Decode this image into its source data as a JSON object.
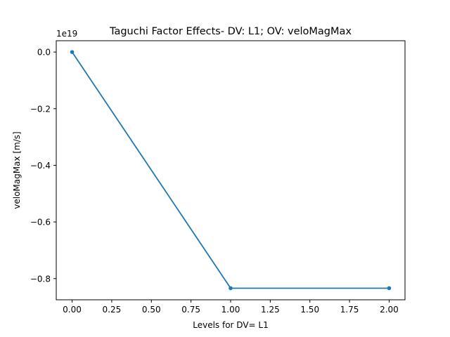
{
  "chart_data": {
    "type": "line",
    "title": "Taguchi Factor Effects- DV: L1; OV: veloMagMax",
    "xlabel": "Levels for DV= L1",
    "ylabel": "veloMagMax [m/s]",
    "y_offset_label": "1e19",
    "xlim": [
      -0.1,
      2.1
    ],
    "ylim": [
      -0.875,
      0.04
    ],
    "x_ticks": [
      0.0,
      0.25,
      0.5,
      0.75,
      1.0,
      1.25,
      1.5,
      1.75,
      2.0
    ],
    "x_tick_labels": [
      "0.00",
      "0.25",
      "0.50",
      "0.75",
      "1.00",
      "1.25",
      "1.50",
      "1.75",
      "2.00"
    ],
    "y_ticks": [
      0.0,
      -0.2,
      -0.4,
      -0.6,
      -0.8
    ],
    "y_tick_labels": [
      "0.0",
      "−0.2",
      "−0.4",
      "−0.6",
      "−0.8"
    ],
    "grid": false,
    "series": [
      {
        "x": [
          0,
          1,
          2
        ],
        "y": [
          0.0,
          -0.834,
          -0.834
        ],
        "color": "#1f77b4",
        "marker": "dot"
      }
    ]
  }
}
